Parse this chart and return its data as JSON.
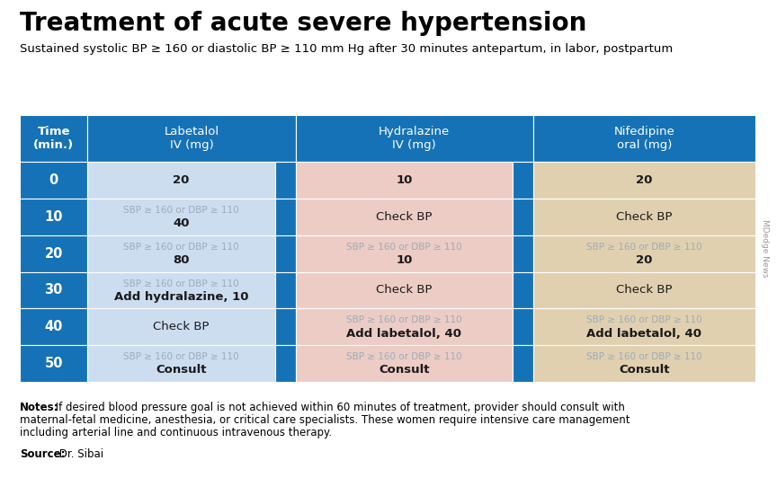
{
  "title": "Treatment of acute severe hypertension",
  "subtitle": "Sustained systolic BP ≥ 160 or diastolic BP ≥ 110 mm Hg after 30 minutes antepartum, in labor, postpartum",
  "notes_bold": "Notes:",
  "notes_rest": " If desired blood pressure goal is not achieved within 60 minutes of treatment, provider should consult with maternal-fetal medicine, anesthesia, or critical care specialists. These women require intensive care management including arterial line and continuous intravenous therapy.",
  "source_bold": "Source:",
  "source_rest": " Dr. Sibai",
  "watermark": "MDedge News",
  "header_bg": "#1572b6",
  "header_text_color": "#ffffff",
  "time_col_bg": "#1572b6",
  "time_text_color": "#ffffff",
  "separator_col_bg": "#1572b6",
  "labetalol_bg_light": "#ccddf0",
  "hydralazine_bg_light": "#ecccc5",
  "nifedipine_bg_light": "#e0d0b0",
  "cell_text_gray": "#9aacba",
  "cell_text_black": "#1a1a1a",
  "bg_color": "#ffffff",
  "title_fontsize": 20,
  "subtitle_fontsize": 9.5,
  "header_fontsize": 9.5,
  "cell_small_fontsize": 7.5,
  "cell_large_fontsize": 9.5,
  "notes_fontsize": 8.5,
  "source_fontsize": 8.5,
  "watermark_fontsize": 6.5,
  "rows": [
    {
      "time": "0",
      "lab_line1": "",
      "lab_line2": "20",
      "lab_bold2": true,
      "hydra_line1": "",
      "hydra_line2": "10",
      "hydra_bold2": true,
      "nife_line1": "",
      "nife_line2": "20",
      "nife_bold2": true
    },
    {
      "time": "10",
      "lab_line1": "SBP ≥ 160 or DBP ≥ 110",
      "lab_line2": "40",
      "lab_bold2": true,
      "hydra_line1": "",
      "hydra_line2": "Check BP",
      "hydra_bold2": false,
      "nife_line1": "",
      "nife_line2": "Check BP",
      "nife_bold2": false
    },
    {
      "time": "20",
      "lab_line1": "SBP ≥ 160 or DBP ≥ 110",
      "lab_line2": "80",
      "lab_bold2": true,
      "hydra_line1": "SBP ≥ 160 or DBP ≥ 110",
      "hydra_line2": "10",
      "hydra_bold2": true,
      "nife_line1": "SBP ≥ 160 or DBP ≥ 110",
      "nife_line2": "20",
      "nife_bold2": true
    },
    {
      "time": "30",
      "lab_line1": "SBP ≥ 160 or DBP ≥ 110",
      "lab_line2": "Add hydralazine, 10",
      "lab_bold2": true,
      "hydra_line1": "",
      "hydra_line2": "Check BP",
      "hydra_bold2": false,
      "nife_line1": "",
      "nife_line2": "Check BP",
      "nife_bold2": false
    },
    {
      "time": "40",
      "lab_line1": "",
      "lab_line2": "Check BP",
      "lab_bold2": false,
      "hydra_line1": "SBP ≥ 160 or DBP ≥ 110",
      "hydra_line2": "Add labetalol, 40",
      "hydra_bold2": true,
      "nife_line1": "SBP ≥ 160 or DBP ≥ 110",
      "nife_line2": "Add labetalol, 40",
      "nife_bold2": true
    },
    {
      "time": "50",
      "lab_line1": "SBP ≥ 160 or DBP ≥ 110",
      "lab_line2": "Consult",
      "lab_bold2": true,
      "hydra_line1": "SBP ≥ 160 or DBP ≥ 110",
      "hydra_line2": "Consult",
      "hydra_bold2": true,
      "nife_line1": "SBP ≥ 160 or DBP ≥ 110",
      "nife_line2": "Consult",
      "nife_bold2": true
    }
  ]
}
